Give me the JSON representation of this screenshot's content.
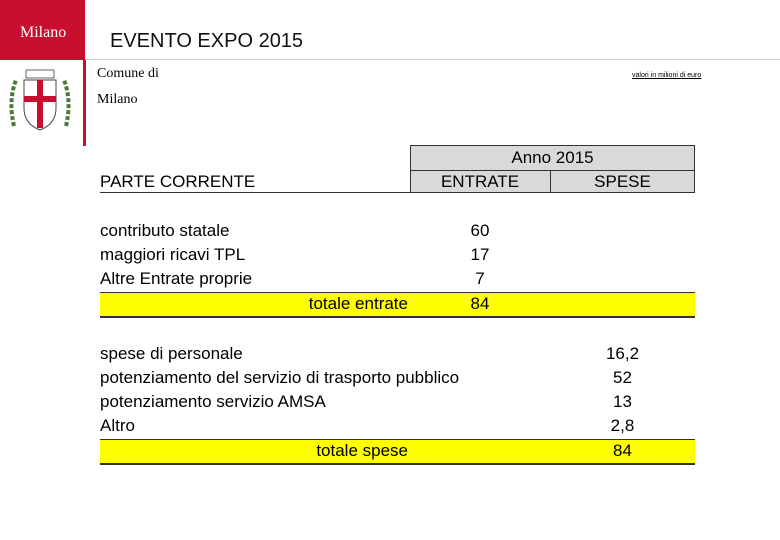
{
  "header": {
    "city": "Milano",
    "title": "EVENTO EXPO 2015",
    "comune": "Comune di",
    "comune_name": "Milano",
    "note": "valori in milioni di euro"
  },
  "table": {
    "year": "Anno 2015",
    "section": "PARTE CORRENTE",
    "columns": [
      "ENTRATE",
      "SPESE"
    ],
    "entrate": [
      {
        "label": "contributo statale",
        "value": "60"
      },
      {
        "label": "maggiori ricavi TPL",
        "value": "17"
      },
      {
        "label": "Altre Entrate proprie",
        "value": "7"
      }
    ],
    "entrate_total": {
      "label": "totale entrate",
      "value": "84"
    },
    "spese": [
      {
        "label": "spese di personale",
        "value": "16,2"
      },
      {
        "label": "potenziamento del servizio di trasporto pubblico",
        "value": "52"
      },
      {
        "label": "potenziamento servizio AMSA",
        "value": "13"
      },
      {
        "label": "Altro",
        "value": "2,8"
      }
    ],
    "spese_total": {
      "label": "totale spese",
      "value": "84"
    }
  }
}
